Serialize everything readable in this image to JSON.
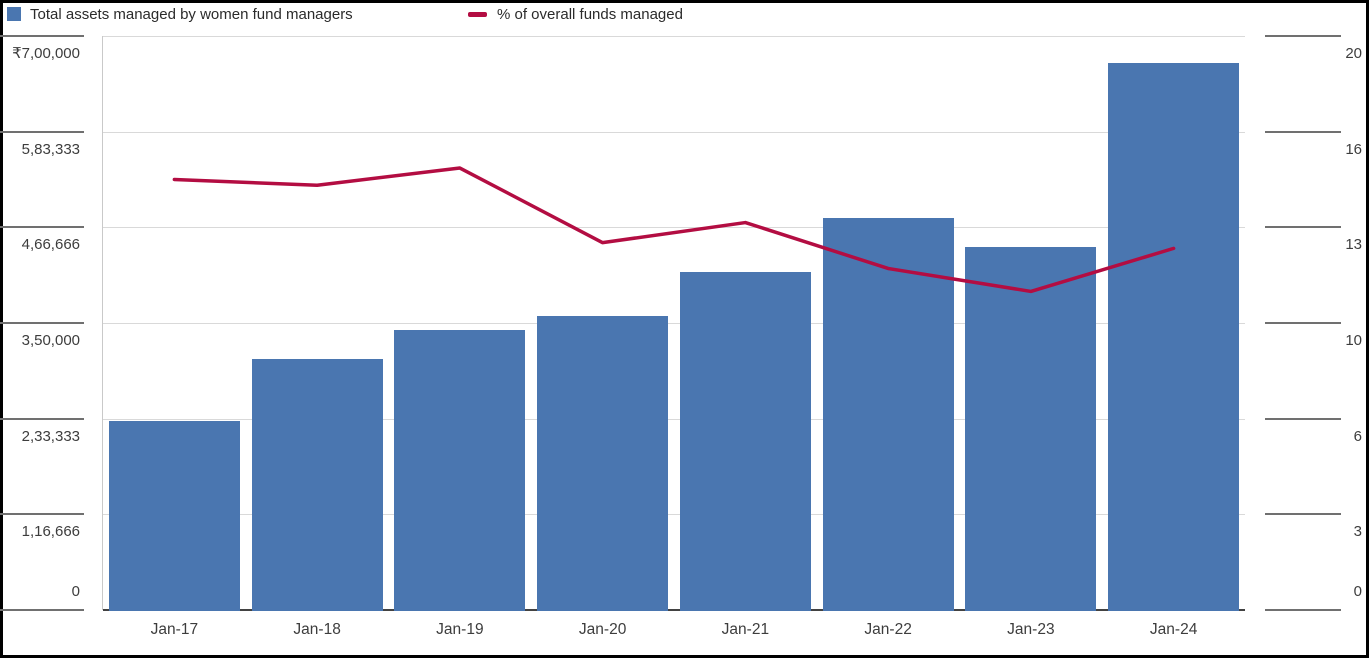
{
  "legend": {
    "items": [
      {
        "label": "Total assets managed by women fund managers",
        "color": "#4a76b0",
        "marker": "square"
      },
      {
        "label": "% of overall funds managed",
        "color": "#b30d42",
        "marker": "dash"
      }
    ]
  },
  "chart_data": {
    "type": "bar",
    "subtype": "bar+line combo, dual axis",
    "categories": [
      "Jan-17",
      "Jan-18",
      "Jan-19",
      "Jan-20",
      "Jan-21",
      "Jan-22",
      "Jan-23",
      "Jan-24"
    ],
    "series": [
      {
        "name": "Total assets managed by women fund managers",
        "type": "bar",
        "axis": "left",
        "color": "#4a76b0",
        "values": [
          230000,
          306000,
          341000,
          358000,
          412000,
          478000,
          443000,
          667000
        ]
      },
      {
        "name": "% of overall funds managed",
        "type": "line",
        "axis": "right",
        "color": "#b30d42",
        "values": [
          15.0,
          14.8,
          15.4,
          12.8,
          13.5,
          11.9,
          11.1,
          12.6
        ]
      }
    ],
    "left_axis": {
      "min": 0,
      "max": 700000,
      "ticks": [
        "₹7,00,000",
        "5,83,333",
        "4,66,666",
        "3,50,000",
        "2,33,333",
        "1,16,666",
        "0"
      ]
    },
    "right_axis": {
      "min": 0,
      "max": 20,
      "ticks": [
        "20",
        "16",
        "13",
        "10",
        "6",
        "3",
        "0"
      ]
    },
    "grid": true,
    "legend_position": "top-left",
    "title": "",
    "xlabel": "",
    "ylabel": ""
  },
  "colors": {
    "grid": "#d9d9d9",
    "baseline": "#424242",
    "tick": "#707070",
    "axis_line": "#c9c9c9",
    "label": "#3d3d3d",
    "background": "#ffffff",
    "border": "#000000"
  }
}
